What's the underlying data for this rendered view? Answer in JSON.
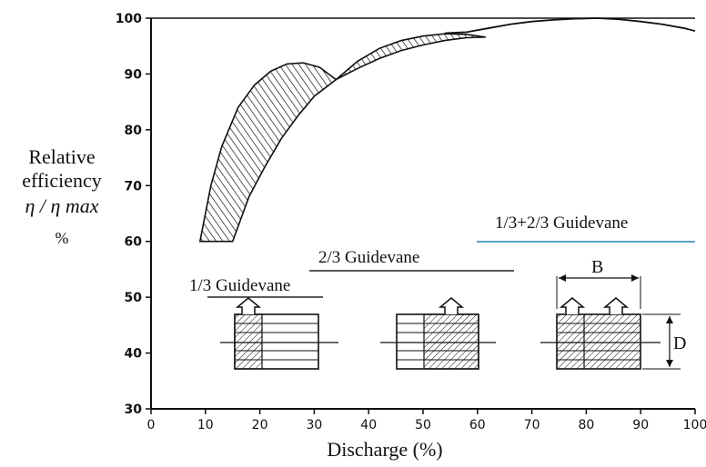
{
  "chart_data": {
    "type": "area",
    "xlabel": "Discharge (%)",
    "ylabel_lines": [
      "Relative",
      "efficiency",
      "η / η max",
      "%"
    ],
    "xlim": [
      0,
      100
    ],
    "ylim": [
      30,
      100
    ],
    "xticks": [
      0,
      10,
      20,
      30,
      40,
      50,
      60,
      70,
      80,
      90,
      100
    ],
    "yticks": [
      30,
      40,
      50,
      60,
      70,
      80,
      90,
      100
    ],
    "grid": false,
    "series": [
      {
        "name": "1/3 Guidevane",
        "upper": {
          "x": [
            9,
            11,
            13,
            16,
            19,
            22,
            25,
            28,
            31,
            34
          ],
          "y": [
            60,
            70,
            77,
            84,
            88,
            90.5,
            91.8,
            92,
            91.2,
            89
          ]
        },
        "lower": {
          "x": [
            15,
            18,
            21,
            24,
            27,
            30,
            34
          ],
          "y": [
            60,
            68,
            73.5,
            78.5,
            82.5,
            86,
            89
          ]
        }
      },
      {
        "name": "2/3 Guidevane",
        "upper": {
          "x": [
            34,
            38,
            42,
            46,
            50,
            54,
            58,
            61.5
          ],
          "y": [
            89,
            92.3,
            94.6,
            96,
            96.8,
            97.2,
            97.1,
            96.6
          ]
        },
        "lower": {
          "x": [
            34,
            38,
            42,
            46,
            50,
            54,
            58,
            61.5
          ],
          "y": [
            89,
            91,
            92.8,
            94.2,
            95.2,
            96,
            96.5,
            96.6
          ]
        }
      },
      {
        "name": "1/3+2/3 Guidevane",
        "line": {
          "x": [
            54,
            58,
            62,
            66,
            70,
            74,
            78,
            82,
            86,
            90,
            94,
            98,
            100
          ],
          "y": [
            97.3,
            97.5,
            98.2,
            98.9,
            99.4,
            99.7,
            99.9,
            100,
            99.8,
            99.4,
            98.9,
            98.2,
            97.7
          ]
        }
      }
    ],
    "annotations": [
      "1/3 Guidevane",
      "2/3 Guidevane",
      "1/3+2/3 Guidevane",
      "B",
      "D"
    ]
  }
}
